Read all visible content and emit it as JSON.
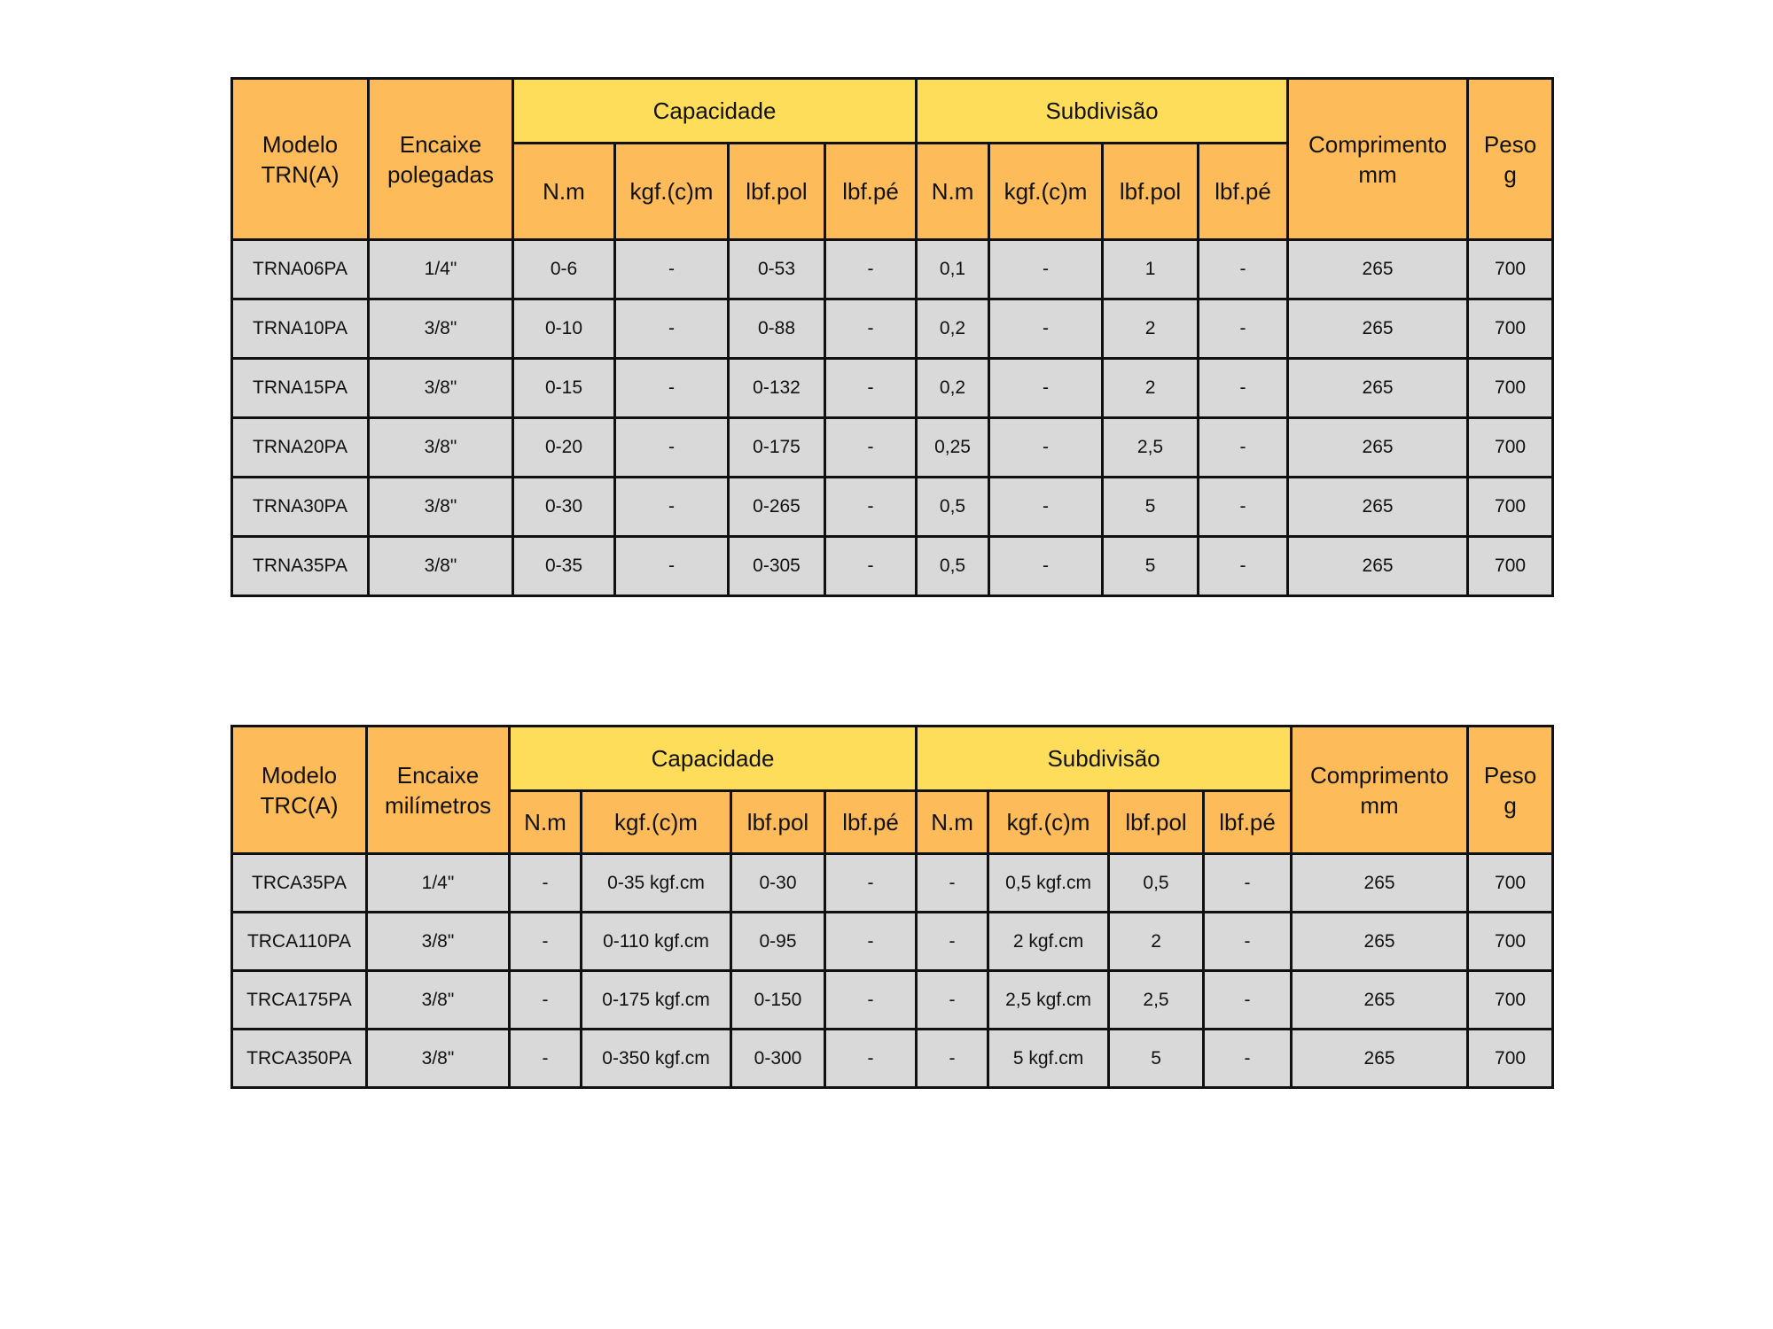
{
  "colors": {
    "header": "#FDBB59",
    "group_header": "#FEDD5A",
    "cell": "#D9D9D9",
    "border": "#111111"
  },
  "table1": {
    "model_header": [
      "Modelo",
      "TRN(A)"
    ],
    "socket_header": [
      "Encaixe",
      "polegadas"
    ],
    "capacity_label": "Capacidade",
    "subdivision_label": "Subdivisão",
    "length_header": [
      "Comprimento",
      "mm"
    ],
    "weight_header": [
      "Peso",
      "g"
    ],
    "units": [
      "N.m",
      "kgf.(c)m",
      "lbf.pol",
      "lbf.pé",
      "N.m",
      "kgf.(c)m",
      "lbf.pol",
      "lbf.pé"
    ],
    "rows": [
      [
        "TRNA06PA",
        "1/4\"",
        "0-6",
        "-",
        "0-53",
        "-",
        "0,1",
        "-",
        "1",
        "-",
        "265",
        "700"
      ],
      [
        "TRNA10PA",
        "3/8\"",
        "0-10",
        "-",
        "0-88",
        "-",
        "0,2",
        "-",
        "2",
        "-",
        "265",
        "700"
      ],
      [
        "TRNA15PA",
        "3/8\"",
        "0-15",
        "-",
        "0-132",
        "-",
        "0,2",
        "-",
        "2",
        "-",
        "265",
        "700"
      ],
      [
        "TRNA20PA",
        "3/8\"",
        "0-20",
        "-",
        "0-175",
        "-",
        "0,25",
        "-",
        "2,5",
        "-",
        "265",
        "700"
      ],
      [
        "TRNA30PA",
        "3/8\"",
        "0-30",
        "-",
        "0-265",
        "-",
        "0,5",
        "-",
        "5",
        "-",
        "265",
        "700"
      ],
      [
        "TRNA35PA",
        "3/8\"",
        "0-35",
        "-",
        "0-305",
        "-",
        "0,5",
        "-",
        "5",
        "-",
        "265",
        "700"
      ]
    ]
  },
  "table2": {
    "model_header": [
      "Modelo",
      "TRC(A)"
    ],
    "socket_header": [
      "Encaixe",
      "milímetros"
    ],
    "capacity_label": "Capacidade",
    "subdivision_label": "Subdivisão",
    "length_header": [
      "Comprimento",
      "mm"
    ],
    "weight_header": [
      "Peso",
      "g"
    ],
    "units": [
      "N.m",
      "kgf.(c)m",
      "lbf.pol",
      "lbf.pé",
      "N.m",
      "kgf.(c)m",
      "lbf.pol",
      "lbf.pé"
    ],
    "rows": [
      [
        "TRCA35PA",
        "1/4\"",
        "-",
        "0-35 kgf.cm",
        "0-30",
        "-",
        "-",
        "0,5 kgf.cm",
        "0,5",
        "-",
        "265",
        "700"
      ],
      [
        "TRCA110PA",
        "3/8\"",
        "-",
        "0-110 kgf.cm",
        "0-95",
        "-",
        "-",
        "2 kgf.cm",
        "2",
        "-",
        "265",
        "700"
      ],
      [
        "TRCA175PA",
        "3/8\"",
        "-",
        "0-175 kgf.cm",
        "0-150",
        "-",
        "-",
        "2,5 kgf.cm",
        "2,5",
        "-",
        "265",
        "700"
      ],
      [
        "TRCA350PA",
        "3/8\"",
        "-",
        "0-350 kgf.cm",
        "0-300",
        "-",
        "-",
        "5 kgf.cm",
        "5",
        "-",
        "265",
        "700"
      ]
    ]
  }
}
